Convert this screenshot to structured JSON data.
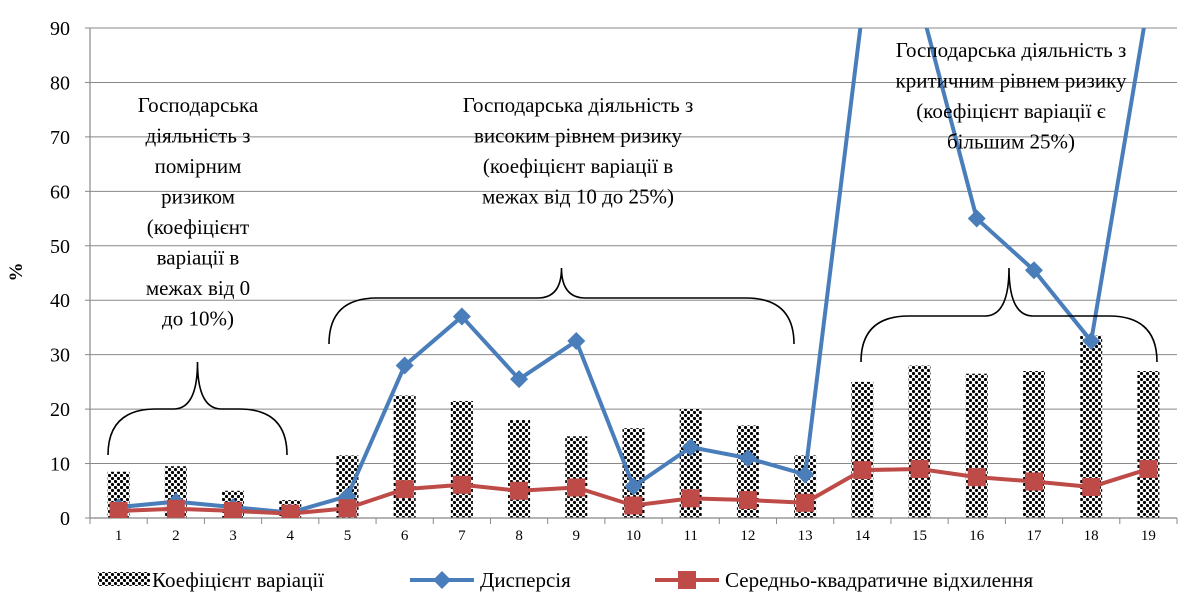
{
  "chart_data": {
    "type": "bar",
    "ylabel": "%",
    "xlabel": "",
    "ylim": [
      0,
      90
    ],
    "yticks": [
      0,
      10,
      20,
      30,
      40,
      50,
      60,
      70,
      80,
      90
    ],
    "grid": true,
    "legend_position": "bottom",
    "categories": [
      "1",
      "2",
      "3",
      "4",
      "5",
      "6",
      "7",
      "8",
      "9",
      "10",
      "11",
      "12",
      "13",
      "14",
      "15",
      "16",
      "17",
      "18",
      "19"
    ],
    "series": [
      {
        "name": "Коефіцієнт варіації",
        "kind": "bar",
        "color": "#000000",
        "values": [
          8.5,
          9.5,
          5.0,
          3.3,
          11.5,
          22.5,
          21.5,
          18.0,
          15.0,
          16.5,
          20.0,
          17.0,
          11.5,
          25.0,
          28.0,
          26.5,
          27.0,
          33.5,
          27.0
        ]
      },
      {
        "name": "Дисперсія",
        "kind": "line",
        "marker": "diamond",
        "color": "#4a7ebb",
        "values": [
          2.0,
          3.0,
          2.0,
          1.0,
          4.0,
          28.0,
          37.0,
          25.5,
          32.5,
          5.8,
          13.0,
          11.0,
          8.0,
          93.0,
          95.0,
          55.0,
          45.5,
          32.5,
          95.0
        ]
      },
      {
        "name": "Середньо-квадратичне відхилення",
        "kind": "line",
        "marker": "square",
        "color": "#be4b48",
        "values": [
          1.3,
          1.7,
          1.3,
          0.8,
          1.8,
          5.3,
          6.1,
          5.0,
          5.6,
          2.3,
          3.6,
          3.3,
          2.8,
          8.8,
          9.0,
          7.5,
          6.7,
          5.7,
          9.0
        ]
      }
    ],
    "annotations": [
      {
        "lines": [
          "Господарська",
          "діяльність з",
          "помірним",
          "ризиком",
          "(коефіцієнт",
          "варіації в",
          "межах від 0",
          "до 10%)"
        ]
      },
      {
        "lines": [
          "Господарська діяльність з",
          "високим рівнем ризику",
          "(коефіцієнт варіації в",
          "межах від 10 до 25%)"
        ]
      },
      {
        "lines": [
          "Господарська діяльність з",
          "критичним рівнем ризику",
          "(коефіцієнт варіації є",
          "більшим 25%)"
        ]
      }
    ]
  }
}
